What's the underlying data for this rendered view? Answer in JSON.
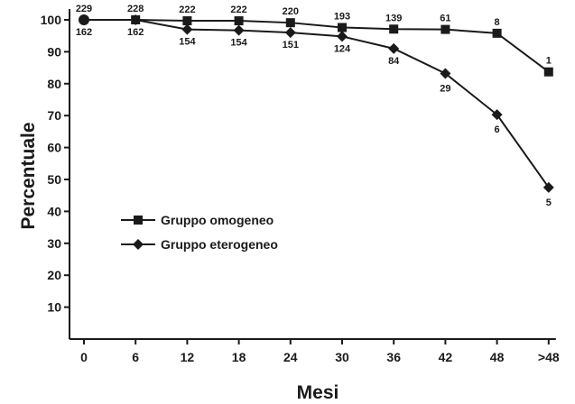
{
  "chart_data": {
    "type": "line",
    "xlabel": "Mesi",
    "ylabel": "Percentuale",
    "categories": [
      "0",
      "6",
      "12",
      "18",
      "24",
      "30",
      "36",
      "42",
      "48",
      ">48"
    ],
    "y_ticks": [
      "10",
      "20",
      "30",
      "40",
      "50",
      "60",
      "70",
      "80",
      "90",
      "100"
    ],
    "ylim": [
      0,
      100
    ],
    "grid": false,
    "legend_position": "middle-left",
    "series": [
      {
        "name": "Gruppo omogeneo",
        "marker": "square",
        "color": "#1a1a1a",
        "values": [
          100,
          100,
          99.7,
          99.7,
          99.1,
          97.6,
          97.1,
          97.0,
          95.8,
          83.7
        ],
        "labels": [
          "229",
          "228",
          "222",
          "222",
          "220",
          "193",
          "139",
          "61",
          "8",
          "1"
        ]
      },
      {
        "name": "Gruppo eterogeneo",
        "marker": "diamond",
        "color": "#1a1a1a",
        "values": [
          100,
          100,
          97.0,
          96.7,
          96.0,
          94.8,
          91.0,
          83.2,
          70.3,
          47.5
        ],
        "labels": [
          "162",
          "162",
          "154",
          "154",
          "151",
          "124",
          "84",
          "29",
          "6",
          "5"
        ]
      }
    ]
  }
}
